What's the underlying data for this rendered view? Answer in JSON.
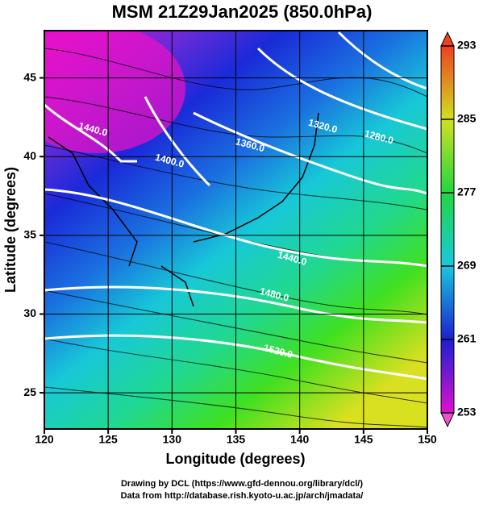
{
  "map": {
    "title": "MSM 21Z29Jan2025 (850.0hPa)",
    "xlabel": "Longitude (degrees)",
    "ylabel": "Latitude  (degrees)",
    "xlim": [
      120,
      150
    ],
    "ylim": [
      22.7,
      48
    ],
    "xticks": [
      120,
      125,
      130,
      135,
      140,
      145,
      150
    ],
    "yticks": [
      25,
      30,
      35,
      40,
      45
    ],
    "colorbar": {
      "lim": [
        253,
        293
      ],
      "ticks": [
        253,
        261,
        269,
        277,
        285,
        293
      ]
    },
    "contour_labels": [
      {
        "label": "1440.0",
        "lon": 123.8,
        "lat": 41.7
      },
      {
        "label": "1400.0",
        "lon": 129.8,
        "lat": 39.7
      },
      {
        "label": "1360.0",
        "lon": 136.1,
        "lat": 40.7
      },
      {
        "label": "1320.0",
        "lon": 141.8,
        "lat": 41.9
      },
      {
        "label": "1280.0",
        "lon": 146.2,
        "lat": 41.2
      },
      {
        "label": "1440.0",
        "lon": 139.4,
        "lat": 33.5
      },
      {
        "label": "1480.0",
        "lon": 138.0,
        "lat": 31.2
      },
      {
        "label": "1520.0",
        "lon": 138.3,
        "lat": 27.6
      }
    ],
    "footer": [
      "Drawing by DCL (https://www.gfd-dennou.org/library/dcl/)",
      "Data from http://database.rish.kyoto-u.ac.jp/arch/jmadata/"
    ]
  }
}
